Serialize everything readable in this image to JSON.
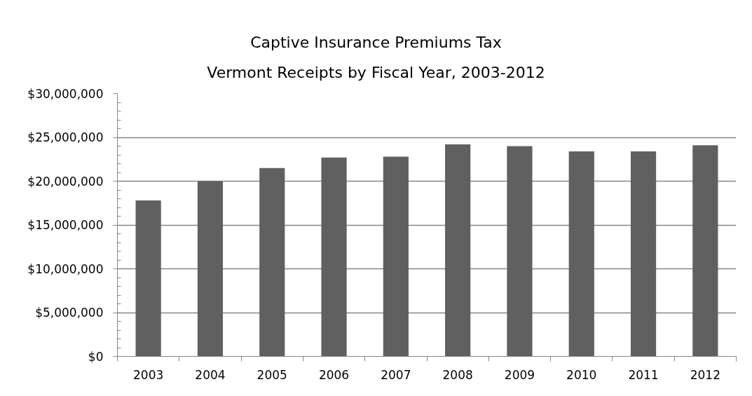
{
  "chart_data": {
    "type": "bar",
    "title": "Captive Insurance Premiums Tax",
    "subtitle": "Vermont Receipts by Fiscal Year, 2003-2012",
    "categories": [
      "2003",
      "2004",
      "2005",
      "2006",
      "2007",
      "2008",
      "2009",
      "2010",
      "2011",
      "2012"
    ],
    "values": [
      17800000,
      20000000,
      21500000,
      22700000,
      22800000,
      24200000,
      24000000,
      23400000,
      23400000,
      24100000
    ],
    "color": "#606060",
    "ylim": [
      0,
      30000000
    ],
    "yticks": [
      {
        "value": 0,
        "label": "$0"
      },
      {
        "value": 5000000,
        "label": "$5,000,000"
      },
      {
        "value": 10000000,
        "label": "$10,000,000"
      },
      {
        "value": 15000000,
        "label": "$15,000,000"
      },
      {
        "value": 20000000,
        "label": "$20,000,000"
      },
      {
        "value": 25000000,
        "label": "$25,000,000"
      },
      {
        "value": 30000000,
        "label": "$30,000,000"
      }
    ],
    "grid": "y"
  }
}
